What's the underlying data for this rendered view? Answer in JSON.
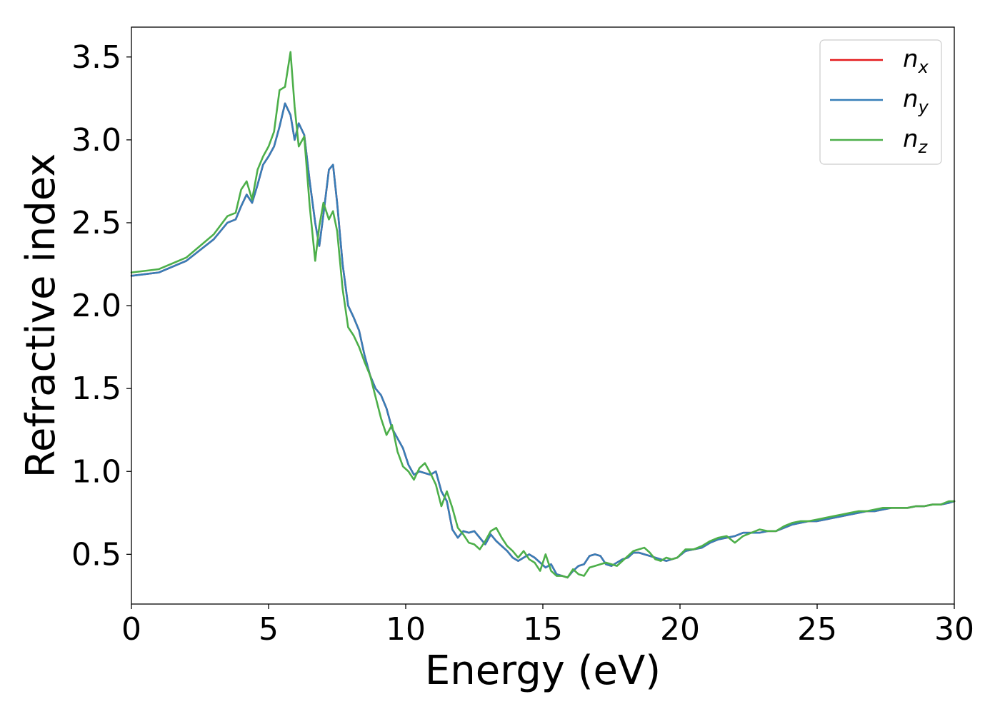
{
  "chart_data": {
    "type": "line",
    "title": "",
    "xlabel": "Energy (eV)",
    "ylabel": "Refractive index",
    "xlim": [
      0,
      30
    ],
    "ylim": [
      0.2,
      3.68
    ],
    "xticks": [
      0,
      5,
      10,
      15,
      20,
      25,
      30
    ],
    "yticks": [
      0.5,
      1.0,
      1.5,
      2.0,
      2.5,
      3.0,
      3.5
    ],
    "xtick_labels": [
      "0",
      "5",
      "10",
      "15",
      "20",
      "25",
      "30"
    ],
    "ytick_labels": [
      "0.5",
      "1.0",
      "1.5",
      "2.0",
      "2.5",
      "3.0",
      "3.5"
    ],
    "grid": false,
    "legend_position": "top-right",
    "series": [
      {
        "name": "n",
        "name_sub": "x",
        "color": "#e41a1c",
        "x": [
          0,
          1,
          2,
          3,
          3.5,
          3.8,
          4.0,
          4.2,
          4.4,
          4.6,
          4.8,
          5.0,
          5.2,
          5.4,
          5.6,
          5.8,
          5.95,
          6.1,
          6.3,
          6.5,
          6.7,
          6.85,
          7.0,
          7.2,
          7.35,
          7.5,
          7.7,
          7.9,
          8.1,
          8.3,
          8.5,
          8.7,
          8.9,
          9.1,
          9.3,
          9.5,
          9.7,
          9.9,
          10.1,
          10.3,
          10.5,
          10.7,
          10.9,
          11.1,
          11.3,
          11.5,
          11.7,
          11.9,
          12.1,
          12.3,
          12.5,
          12.7,
          12.9,
          13.1,
          13.3,
          13.5,
          13.7,
          13.9,
          14.1,
          14.3,
          14.5,
          14.7,
          14.9,
          15.1,
          15.3,
          15.5,
          15.7,
          15.9,
          16.1,
          16.3,
          16.5,
          16.7,
          16.9,
          17.1,
          17.3,
          17.5,
          17.7,
          17.9,
          18.1,
          18.3,
          18.5,
          18.7,
          18.9,
          19.1,
          19.3,
          19.5,
          19.7,
          19.9,
          20.2,
          20.5,
          20.8,
          21.1,
          21.4,
          21.7,
          22.0,
          22.3,
          22.6,
          22.9,
          23.2,
          23.5,
          23.8,
          24.1,
          24.4,
          24.7,
          25.0,
          25.3,
          25.6,
          25.9,
          26.2,
          26.5,
          26.8,
          27.1,
          27.4,
          27.7,
          28.0,
          28.3,
          28.6,
          28.9,
          29.2,
          29.5,
          29.8,
          30.0
        ],
        "y": [
          2.18,
          2.2,
          2.27,
          2.4,
          2.5,
          2.52,
          2.6,
          2.67,
          2.62,
          2.73,
          2.85,
          2.9,
          2.96,
          3.08,
          3.22,
          3.15,
          3.0,
          3.1,
          3.03,
          2.75,
          2.5,
          2.36,
          2.55,
          2.82,
          2.85,
          2.62,
          2.25,
          2.0,
          1.93,
          1.85,
          1.7,
          1.58,
          1.5,
          1.46,
          1.38,
          1.26,
          1.2,
          1.14,
          1.04,
          0.98,
          1.0,
          0.99,
          0.98,
          1.0,
          0.88,
          0.82,
          0.65,
          0.6,
          0.64,
          0.63,
          0.64,
          0.6,
          0.56,
          0.62,
          0.58,
          0.55,
          0.52,
          0.48,
          0.46,
          0.48,
          0.5,
          0.48,
          0.45,
          0.42,
          0.44,
          0.38,
          0.37,
          0.36,
          0.4,
          0.43,
          0.44,
          0.49,
          0.5,
          0.49,
          0.44,
          0.43,
          0.45,
          0.47,
          0.48,
          0.51,
          0.51,
          0.5,
          0.49,
          0.48,
          0.47,
          0.46,
          0.47,
          0.48,
          0.52,
          0.53,
          0.54,
          0.57,
          0.59,
          0.6,
          0.61,
          0.63,
          0.63,
          0.63,
          0.64,
          0.64,
          0.66,
          0.68,
          0.69,
          0.7,
          0.7,
          0.71,
          0.72,
          0.73,
          0.74,
          0.75,
          0.76,
          0.76,
          0.77,
          0.78,
          0.78,
          0.78,
          0.79,
          0.79,
          0.8,
          0.8,
          0.81,
          0.82
        ]
      },
      {
        "name": "n",
        "name_sub": "y",
        "color": "#377eb8",
        "x": [
          0,
          1,
          2,
          3,
          3.5,
          3.8,
          4.0,
          4.2,
          4.4,
          4.6,
          4.8,
          5.0,
          5.2,
          5.4,
          5.6,
          5.8,
          5.95,
          6.1,
          6.3,
          6.5,
          6.7,
          6.85,
          7.0,
          7.2,
          7.35,
          7.5,
          7.7,
          7.9,
          8.1,
          8.3,
          8.5,
          8.7,
          8.9,
          9.1,
          9.3,
          9.5,
          9.7,
          9.9,
          10.1,
          10.3,
          10.5,
          10.7,
          10.9,
          11.1,
          11.3,
          11.5,
          11.7,
          11.9,
          12.1,
          12.3,
          12.5,
          12.7,
          12.9,
          13.1,
          13.3,
          13.5,
          13.7,
          13.9,
          14.1,
          14.3,
          14.5,
          14.7,
          14.9,
          15.1,
          15.3,
          15.5,
          15.7,
          15.9,
          16.1,
          16.3,
          16.5,
          16.7,
          16.9,
          17.1,
          17.3,
          17.5,
          17.7,
          17.9,
          18.1,
          18.3,
          18.5,
          18.7,
          18.9,
          19.1,
          19.3,
          19.5,
          19.7,
          19.9,
          20.2,
          20.5,
          20.8,
          21.1,
          21.4,
          21.7,
          22.0,
          22.3,
          22.6,
          22.9,
          23.2,
          23.5,
          23.8,
          24.1,
          24.4,
          24.7,
          25.0,
          25.3,
          25.6,
          25.9,
          26.2,
          26.5,
          26.8,
          27.1,
          27.4,
          27.7,
          28.0,
          28.3,
          28.6,
          28.9,
          29.2,
          29.5,
          29.8,
          30.0
        ],
        "y": [
          2.18,
          2.2,
          2.27,
          2.4,
          2.5,
          2.52,
          2.6,
          2.67,
          2.62,
          2.73,
          2.85,
          2.9,
          2.96,
          3.08,
          3.22,
          3.15,
          3.0,
          3.1,
          3.03,
          2.75,
          2.5,
          2.36,
          2.55,
          2.82,
          2.85,
          2.62,
          2.25,
          2.0,
          1.93,
          1.85,
          1.7,
          1.58,
          1.5,
          1.46,
          1.38,
          1.26,
          1.2,
          1.14,
          1.04,
          0.98,
          1.0,
          0.99,
          0.98,
          1.0,
          0.88,
          0.82,
          0.65,
          0.6,
          0.64,
          0.63,
          0.64,
          0.6,
          0.56,
          0.62,
          0.58,
          0.55,
          0.52,
          0.48,
          0.46,
          0.48,
          0.5,
          0.48,
          0.45,
          0.42,
          0.44,
          0.38,
          0.37,
          0.36,
          0.4,
          0.43,
          0.44,
          0.49,
          0.5,
          0.49,
          0.44,
          0.43,
          0.45,
          0.47,
          0.48,
          0.51,
          0.51,
          0.5,
          0.49,
          0.48,
          0.47,
          0.46,
          0.47,
          0.48,
          0.52,
          0.53,
          0.54,
          0.57,
          0.59,
          0.6,
          0.61,
          0.63,
          0.63,
          0.63,
          0.64,
          0.64,
          0.66,
          0.68,
          0.69,
          0.7,
          0.7,
          0.71,
          0.72,
          0.73,
          0.74,
          0.75,
          0.76,
          0.76,
          0.77,
          0.78,
          0.78,
          0.78,
          0.79,
          0.79,
          0.8,
          0.8,
          0.81,
          0.82
        ]
      },
      {
        "name": "n",
        "name_sub": "z",
        "color": "#4daf4a",
        "x": [
          0,
          1,
          2,
          3,
          3.5,
          3.8,
          4.0,
          4.2,
          4.4,
          4.6,
          4.8,
          5.0,
          5.2,
          5.4,
          5.6,
          5.8,
          5.95,
          6.1,
          6.3,
          6.5,
          6.7,
          6.85,
          7.0,
          7.2,
          7.35,
          7.5,
          7.7,
          7.9,
          8.1,
          8.3,
          8.5,
          8.7,
          8.9,
          9.1,
          9.3,
          9.5,
          9.7,
          9.9,
          10.1,
          10.3,
          10.5,
          10.7,
          10.9,
          11.1,
          11.3,
          11.5,
          11.7,
          11.9,
          12.1,
          12.3,
          12.5,
          12.7,
          12.9,
          13.1,
          13.3,
          13.5,
          13.7,
          13.9,
          14.1,
          14.3,
          14.5,
          14.7,
          14.9,
          15.1,
          15.3,
          15.5,
          15.7,
          15.9,
          16.1,
          16.3,
          16.5,
          16.7,
          16.9,
          17.1,
          17.3,
          17.5,
          17.7,
          17.9,
          18.1,
          18.3,
          18.5,
          18.7,
          18.9,
          19.1,
          19.3,
          19.5,
          19.7,
          19.9,
          20.2,
          20.5,
          20.8,
          21.1,
          21.4,
          21.7,
          22.0,
          22.3,
          22.6,
          22.9,
          23.2,
          23.5,
          23.8,
          24.1,
          24.4,
          24.7,
          25.0,
          25.3,
          25.6,
          25.9,
          26.2,
          26.5,
          26.8,
          27.1,
          27.4,
          27.7,
          28.0,
          28.3,
          28.6,
          28.9,
          29.2,
          29.5,
          29.8,
          30.0
        ],
        "y": [
          2.2,
          2.22,
          2.29,
          2.43,
          2.54,
          2.56,
          2.7,
          2.75,
          2.64,
          2.82,
          2.9,
          2.96,
          3.05,
          3.3,
          3.32,
          3.53,
          3.2,
          2.96,
          3.02,
          2.6,
          2.27,
          2.48,
          2.62,
          2.52,
          2.57,
          2.45,
          2.1,
          1.87,
          1.82,
          1.75,
          1.66,
          1.58,
          1.45,
          1.32,
          1.22,
          1.28,
          1.12,
          1.03,
          1.0,
          0.95,
          1.02,
          1.05,
          0.99,
          0.92,
          0.79,
          0.88,
          0.78,
          0.66,
          0.62,
          0.57,
          0.56,
          0.53,
          0.58,
          0.64,
          0.66,
          0.6,
          0.55,
          0.52,
          0.48,
          0.52,
          0.47,
          0.45,
          0.4,
          0.5,
          0.4,
          0.37,
          0.37,
          0.36,
          0.41,
          0.38,
          0.37,
          0.42,
          0.43,
          0.44,
          0.45,
          0.44,
          0.43,
          0.46,
          0.49,
          0.52,
          0.53,
          0.54,
          0.51,
          0.47,
          0.46,
          0.48,
          0.47,
          0.48,
          0.53,
          0.53,
          0.55,
          0.58,
          0.6,
          0.61,
          0.57,
          0.61,
          0.63,
          0.65,
          0.64,
          0.64,
          0.67,
          0.69,
          0.7,
          0.7,
          0.71,
          0.72,
          0.73,
          0.74,
          0.75,
          0.76,
          0.76,
          0.77,
          0.78,
          0.78,
          0.78,
          0.78,
          0.79,
          0.79,
          0.8,
          0.8,
          0.82,
          0.82
        ]
      }
    ]
  }
}
